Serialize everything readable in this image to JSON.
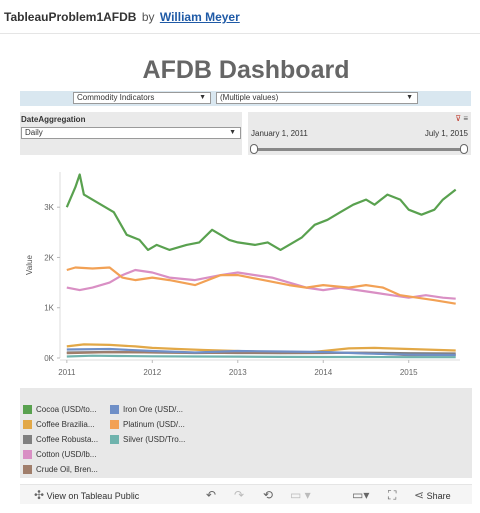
{
  "header": {
    "workbook": "TableauProblem1AFDB",
    "by": "by",
    "author": "William Meyer"
  },
  "dashboard": {
    "title": "AFDB Dashboard"
  },
  "filters": {
    "indicator": "Commodity Indicators",
    "values": "(Multiple values)",
    "aggregation_label": "DateAggregation",
    "aggregation_value": "Daily",
    "date_start": "January 1, 2011",
    "date_end": "July 1, 2015",
    "range_start_fraction": 0.0,
    "range_end_fraction": 1.0
  },
  "chart_data": {
    "type": "line",
    "ylabel": "Value",
    "xlabel": "",
    "x_ticks": [
      "2011",
      "2012",
      "2013",
      "2014",
      "2015"
    ],
    "y_ticks": [
      "0K",
      "1K",
      "2K",
      "3K"
    ],
    "ylim": [
      0,
      3700
    ],
    "xlim": [
      2010.92,
      2015.6
    ],
    "grid": false,
    "legend_position": "bottom",
    "series": [
      {
        "name": "Cocoa (USD/to...",
        "color": "#59a14f",
        "x": [
          2011.0,
          2011.1,
          2011.15,
          2011.2,
          2011.35,
          2011.55,
          2011.7,
          2011.85,
          2011.95,
          2012.05,
          2012.2,
          2012.4,
          2012.55,
          2012.7,
          2012.9,
          2013.0,
          2013.2,
          2013.35,
          2013.5,
          2013.6,
          2013.75,
          2013.9,
          2014.05,
          2014.2,
          2014.35,
          2014.5,
          2014.6,
          2014.75,
          2014.9,
          2015.0,
          2015.15,
          2015.3,
          2015.4,
          2015.55
        ],
        "y": [
          3000,
          3400,
          3650,
          3250,
          3100,
          2900,
          2450,
          2350,
          2150,
          2250,
          2150,
          2250,
          2300,
          2550,
          2350,
          2300,
          2250,
          2300,
          2150,
          2250,
          2400,
          2650,
          2750,
          2900,
          3050,
          3150,
          3050,
          3250,
          3150,
          2950,
          2850,
          2950,
          3150,
          3350
        ]
      },
      {
        "name": "Coffee Brazilia...",
        "color": "#e2a847",
        "x": [
          2011.0,
          2011.2,
          2011.5,
          2011.8,
          2012.0,
          2012.3,
          2012.6,
          2013.0,
          2013.4,
          2013.8,
          2014.0,
          2014.3,
          2014.6,
          2015.0,
          2015.55
        ],
        "y": [
          230,
          270,
          260,
          230,
          200,
          180,
          160,
          140,
          120,
          110,
          140,
          190,
          200,
          180,
          150
        ]
      },
      {
        "name": "Coffee Robusta...",
        "color": "#7f7f7f",
        "x": [
          2011.0,
          2011.5,
          2012.0,
          2012.5,
          2013.0,
          2013.5,
          2014.0,
          2014.5,
          2015.0,
          2015.55
        ],
        "y": [
          110,
          120,
          110,
          105,
          100,
          95,
          100,
          105,
          95,
          90
        ]
      },
      {
        "name": "Cotton (USD/lb...",
        "color": "#d98fc4",
        "x": [
          2011.0,
          2011.15,
          2011.3,
          2011.5,
          2011.65,
          2011.8,
          2012.0,
          2012.2,
          2012.5,
          2012.8,
          2013.0,
          2013.2,
          2013.4,
          2013.6,
          2013.8,
          2014.0,
          2014.2,
          2014.4,
          2014.6,
          2014.8,
          2015.0,
          2015.2,
          2015.4,
          2015.55
        ],
        "y": [
          1400,
          1350,
          1400,
          1500,
          1650,
          1750,
          1700,
          1600,
          1550,
          1650,
          1700,
          1650,
          1600,
          1500,
          1400,
          1350,
          1400,
          1350,
          1300,
          1250,
          1200,
          1250,
          1200,
          1180
        ]
      },
      {
        "name": "Crude Oil, Bren...",
        "color": "#a07e6b",
        "x": [
          2011.0,
          2011.5,
          2012.0,
          2012.5,
          2013.0,
          2013.5,
          2014.0,
          2014.5,
          2015.0,
          2015.55
        ],
        "y": [
          95,
          115,
          112,
          100,
          108,
          105,
          107,
          100,
          55,
          60
        ]
      },
      {
        "name": "Iron Ore (USD/...",
        "color": "#6f8fc7",
        "x": [
          2011.0,
          2011.5,
          2012.0,
          2012.5,
          2013.0,
          2013.5,
          2014.0,
          2014.5,
          2015.0,
          2015.55
        ],
        "y": [
          170,
          180,
          140,
          110,
          140,
          130,
          120,
          90,
          65,
          60
        ]
      },
      {
        "name": "Platinum (USD/...",
        "color": "#f2a155",
        "x": [
          2011.0,
          2011.1,
          2011.3,
          2011.5,
          2011.65,
          2011.8,
          2012.0,
          2012.2,
          2012.5,
          2012.8,
          2013.0,
          2013.3,
          2013.6,
          2013.8,
          2014.0,
          2014.3,
          2014.5,
          2014.7,
          2014.9,
          2015.1,
          2015.3,
          2015.55
        ],
        "y": [
          1750,
          1800,
          1780,
          1800,
          1600,
          1550,
          1600,
          1550,
          1450,
          1650,
          1650,
          1550,
          1450,
          1400,
          1450,
          1400,
          1450,
          1400,
          1250,
          1200,
          1150,
          1080
        ]
      },
      {
        "name": "Silver (USD/Tro...",
        "color": "#6fb3ad",
        "x": [
          2011.0,
          2011.3,
          2011.6,
          2012.0,
          2012.5,
          2013.0,
          2013.5,
          2014.0,
          2014.5,
          2015.0,
          2015.55
        ],
        "y": [
          30,
          45,
          40,
          33,
          30,
          28,
          22,
          20,
          19,
          16,
          15
        ]
      }
    ]
  },
  "legend": {
    "items": [
      {
        "label": "Cocoa (USD/to...",
        "color": "#59a14f"
      },
      {
        "label": "Coffee Brazilia...",
        "color": "#e2a847"
      },
      {
        "label": "Coffee Robusta...",
        "color": "#7f7f7f"
      },
      {
        "label": "Cotton (USD/lb...",
        "color": "#d98fc4"
      },
      {
        "label": "Crude Oil, Bren...",
        "color": "#a07e6b"
      },
      {
        "label": "Iron Ore (USD/...",
        "color": "#6f8fc7"
      },
      {
        "label": "Platinum (USD/...",
        "color": "#f2a155"
      },
      {
        "label": "Silver (USD/Tro...",
        "color": "#6fb3ad"
      }
    ]
  },
  "toolbar": {
    "view_label": "View on Tableau Public",
    "share_label": "Share",
    "icons": [
      "tableau-public-icon",
      "undo-icon",
      "redo-icon",
      "revert-icon",
      "pause-icon",
      "download-icon",
      "fullscreen-icon",
      "share-icon"
    ]
  }
}
